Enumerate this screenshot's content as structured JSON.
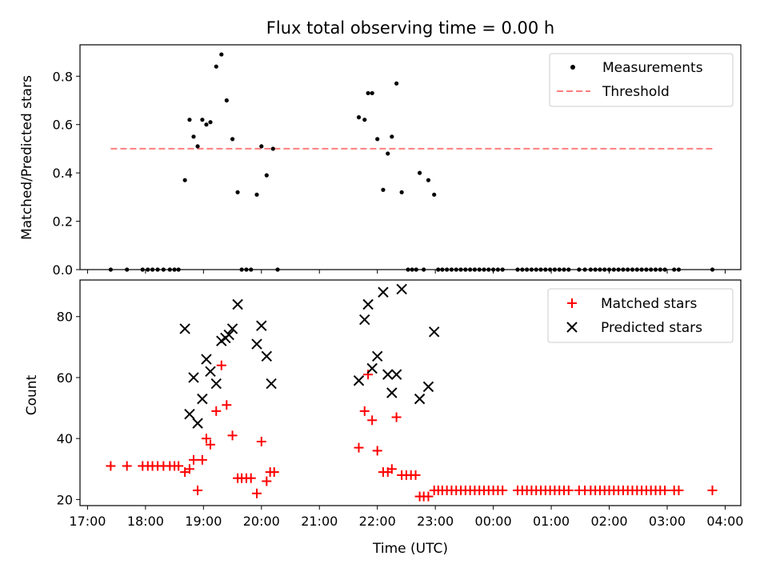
{
  "chart_data": [
    {
      "type": "scatter",
      "title": "Flux total observing time = 0.00 h",
      "ylabel": "Matched/Predicted stars",
      "xlabel": "",
      "xlim": [
        16.87,
        28.27
      ],
      "ylim": [
        0,
        0.93
      ],
      "yticks": [
        0.0,
        0.2,
        0.4,
        0.6,
        0.8
      ],
      "ytick_labels": [
        "0.0",
        "0.2",
        "0.4",
        "0.6",
        "0.8"
      ],
      "threshold": {
        "value": 0.5,
        "x_start": 17.4,
        "x_end": 27.78,
        "color": "#ff7f7f"
      },
      "legend": {
        "position": "top-right",
        "entries": [
          "Measurements",
          "Threshold"
        ]
      },
      "series": [
        {
          "name": "Measurements",
          "color": "#000000",
          "x": [
            18.68,
            18.76,
            18.83,
            18.9,
            18.98,
            19.05,
            19.12,
            19.22,
            19.31,
            19.4,
            19.5,
            19.59,
            19.92,
            20.0,
            20.09,
            20.2,
            21.68,
            21.78,
            21.84,
            21.91,
            22.0,
            22.1,
            22.18,
            22.25,
            22.33,
            22.42,
            22.73,
            22.88,
            22.98,
            17.4,
            17.68,
            17.95,
            18.04,
            18.12,
            18.21,
            18.31,
            18.42,
            18.5,
            18.57,
            19.66,
            19.74,
            19.82,
            20.28,
            22.53,
            22.6,
            22.67,
            22.8,
            23.05,
            23.12,
            23.2,
            23.28,
            23.36,
            23.44,
            23.52,
            23.6,
            23.68,
            23.76,
            23.84,
            23.92,
            24.0,
            24.08,
            24.16,
            24.42,
            24.5,
            24.58,
            24.66,
            24.74,
            24.82,
            24.9,
            24.98,
            25.06,
            25.14,
            25.22,
            25.3,
            25.48,
            25.58,
            25.68,
            25.76,
            25.84,
            25.92,
            26.0,
            26.08,
            26.16,
            26.24,
            26.32,
            26.4,
            26.48,
            26.56,
            26.64,
            26.72,
            26.8,
            26.88,
            26.96,
            27.12,
            27.2,
            27.78
          ],
          "y": [
            0.37,
            0.62,
            0.55,
            0.51,
            0.62,
            0.6,
            0.61,
            0.84,
            0.89,
            0.7,
            0.54,
            0.32,
            0.31,
            0.51,
            0.39,
            0.5,
            0.63,
            0.62,
            0.73,
            0.73,
            0.54,
            0.33,
            0.48,
            0.55,
            0.77,
            0.32,
            0.4,
            0.37,
            0.31,
            0,
            0,
            0,
            0,
            0,
            0,
            0,
            0,
            0,
            0,
            0,
            0,
            0,
            0,
            0,
            0,
            0,
            0,
            0,
            0,
            0,
            0,
            0,
            0,
            0,
            0,
            0,
            0,
            0,
            0,
            0,
            0,
            0,
            0,
            0,
            0,
            0,
            0,
            0,
            0,
            0,
            0,
            0,
            0,
            0,
            0,
            0,
            0,
            0,
            0,
            0,
            0,
            0,
            0,
            0,
            0,
            0,
            0,
            0,
            0,
            0,
            0,
            0,
            0,
            0,
            0,
            0
          ]
        }
      ]
    },
    {
      "type": "scatter",
      "ylabel": "Count",
      "xlabel": "Time (UTC)",
      "xlim": [
        16.87,
        28.27
      ],
      "ylim": [
        18.0,
        92.0
      ],
      "yticks": [
        20,
        40,
        60,
        80
      ],
      "ytick_labels": [
        "20",
        "40",
        "60",
        "80"
      ],
      "xticks": [
        17,
        18,
        19,
        20,
        21,
        22,
        23,
        24,
        25,
        26,
        27,
        28
      ],
      "xtick_labels": [
        "17:00",
        "18:00",
        "19:00",
        "20:00",
        "21:00",
        "22:00",
        "23:00",
        "00:00",
        "01:00",
        "02:00",
        "03:00",
        "04:00"
      ],
      "legend": {
        "position": "top-right",
        "entries": [
          "Matched stars",
          "Predicted stars"
        ]
      },
      "series": [
        {
          "name": "Matched stars",
          "color": "#ff0000",
          "marker": "plus",
          "x": [
            17.4,
            17.68,
            17.95,
            18.04,
            18.12,
            18.21,
            18.31,
            18.42,
            18.5,
            18.57,
            18.68,
            18.76,
            18.83,
            18.9,
            18.98,
            19.05,
            19.12,
            19.22,
            19.31,
            19.4,
            19.5,
            19.59,
            19.66,
            19.74,
            19.82,
            19.92,
            20.0,
            20.09,
            20.15,
            20.22,
            21.68,
            21.78,
            21.84,
            21.91,
            22.0,
            22.1,
            22.18,
            22.25,
            22.33,
            22.42,
            22.5,
            22.58,
            22.66,
            22.73,
            22.8,
            22.88,
            22.98,
            23.05,
            23.12,
            23.2,
            23.28,
            23.36,
            23.44,
            23.52,
            23.6,
            23.68,
            23.76,
            23.84,
            23.92,
            24.0,
            24.08,
            24.16,
            24.42,
            24.5,
            24.58,
            24.66,
            24.74,
            24.82,
            24.9,
            24.98,
            25.06,
            25.14,
            25.22,
            25.3,
            25.48,
            25.58,
            25.68,
            25.76,
            25.84,
            25.92,
            26.0,
            26.08,
            26.16,
            26.24,
            26.32,
            26.4,
            26.48,
            26.56,
            26.64,
            26.72,
            26.8,
            26.88,
            26.96,
            27.12,
            27.2,
            27.78
          ],
          "y": [
            31,
            31,
            31,
            31,
            31,
            31,
            31,
            31,
            31,
            31,
            29,
            30,
            33,
            23,
            33,
            40,
            38,
            49,
            64,
            51,
            41,
            27,
            27,
            27,
            27,
            22,
            39,
            26,
            29,
            29,
            37,
            49,
            61,
            46,
            36,
            29,
            29,
            30,
            47,
            28,
            28,
            28,
            28,
            21,
            21,
            21,
            23,
            23,
            23,
            23,
            23,
            23,
            23,
            23,
            23,
            23,
            23,
            23,
            23,
            23,
            23,
            23,
            23,
            23,
            23,
            23,
            23,
            23,
            23,
            23,
            23,
            23,
            23,
            23,
            23,
            23,
            23,
            23,
            23,
            23,
            23,
            23,
            23,
            23,
            23,
            23,
            23,
            23,
            23,
            23,
            23,
            23,
            23,
            23,
            23,
            23
          ]
        },
        {
          "name": "Predicted stars",
          "color": "#000000",
          "marker": "x",
          "x": [
            18.68,
            18.76,
            18.83,
            18.9,
            18.98,
            19.05,
            19.12,
            19.22,
            19.31,
            19.38,
            19.44,
            19.5,
            19.59,
            19.92,
            20.0,
            20.09,
            20.17,
            21.68,
            21.78,
            21.84,
            21.91,
            22.0,
            22.1,
            22.18,
            22.25,
            22.33,
            22.42,
            22.73,
            22.88,
            22.98
          ],
          "y": [
            76,
            48,
            60,
            45,
            53,
            66,
            62,
            58,
            72,
            73,
            74,
            76,
            84,
            71,
            77,
            67,
            58,
            59,
            79,
            84,
            63,
            67,
            88,
            61,
            55,
            61,
            89,
            53,
            57,
            75
          ]
        }
      ]
    }
  ]
}
